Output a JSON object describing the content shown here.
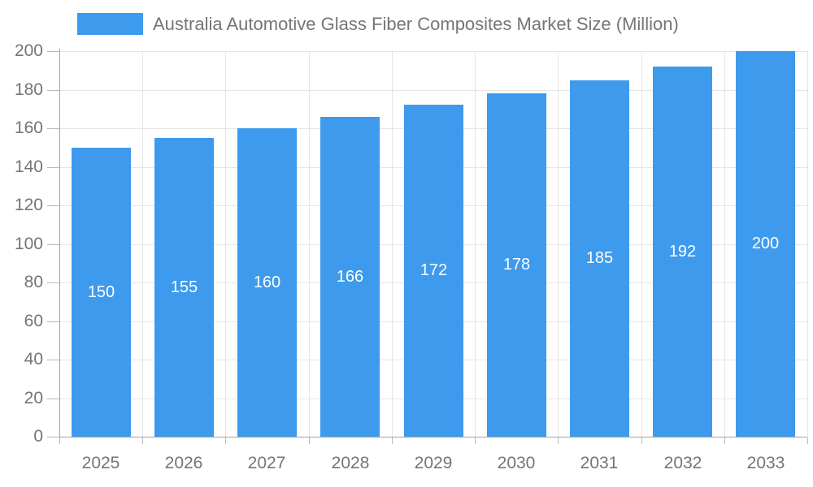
{
  "chart_data": {
    "type": "bar",
    "title": "Australia Automotive Glass Fiber Composites Market Size (Million)",
    "categories": [
      "2025",
      "2026",
      "2027",
      "2028",
      "2029",
      "2030",
      "2031",
      "2032",
      "2033"
    ],
    "values": [
      150,
      155,
      160,
      166,
      172,
      178,
      185,
      192,
      200
    ],
    "xlabel": "",
    "ylabel": "",
    "ylim": [
      0,
      200
    ],
    "yticks": [
      0,
      20,
      40,
      60,
      80,
      100,
      120,
      140,
      160,
      180,
      200
    ],
    "grid": true,
    "legend_position": "top",
    "bar_labels_visible": true,
    "colors": {
      "bar": "#3D9AED",
      "grid": "#e5e5e5",
      "axis": "#a3a3a3",
      "tick": "#b8b8b8",
      "text": "#757575",
      "bar_label": "#ffffff",
      "background": "#ffffff"
    }
  }
}
